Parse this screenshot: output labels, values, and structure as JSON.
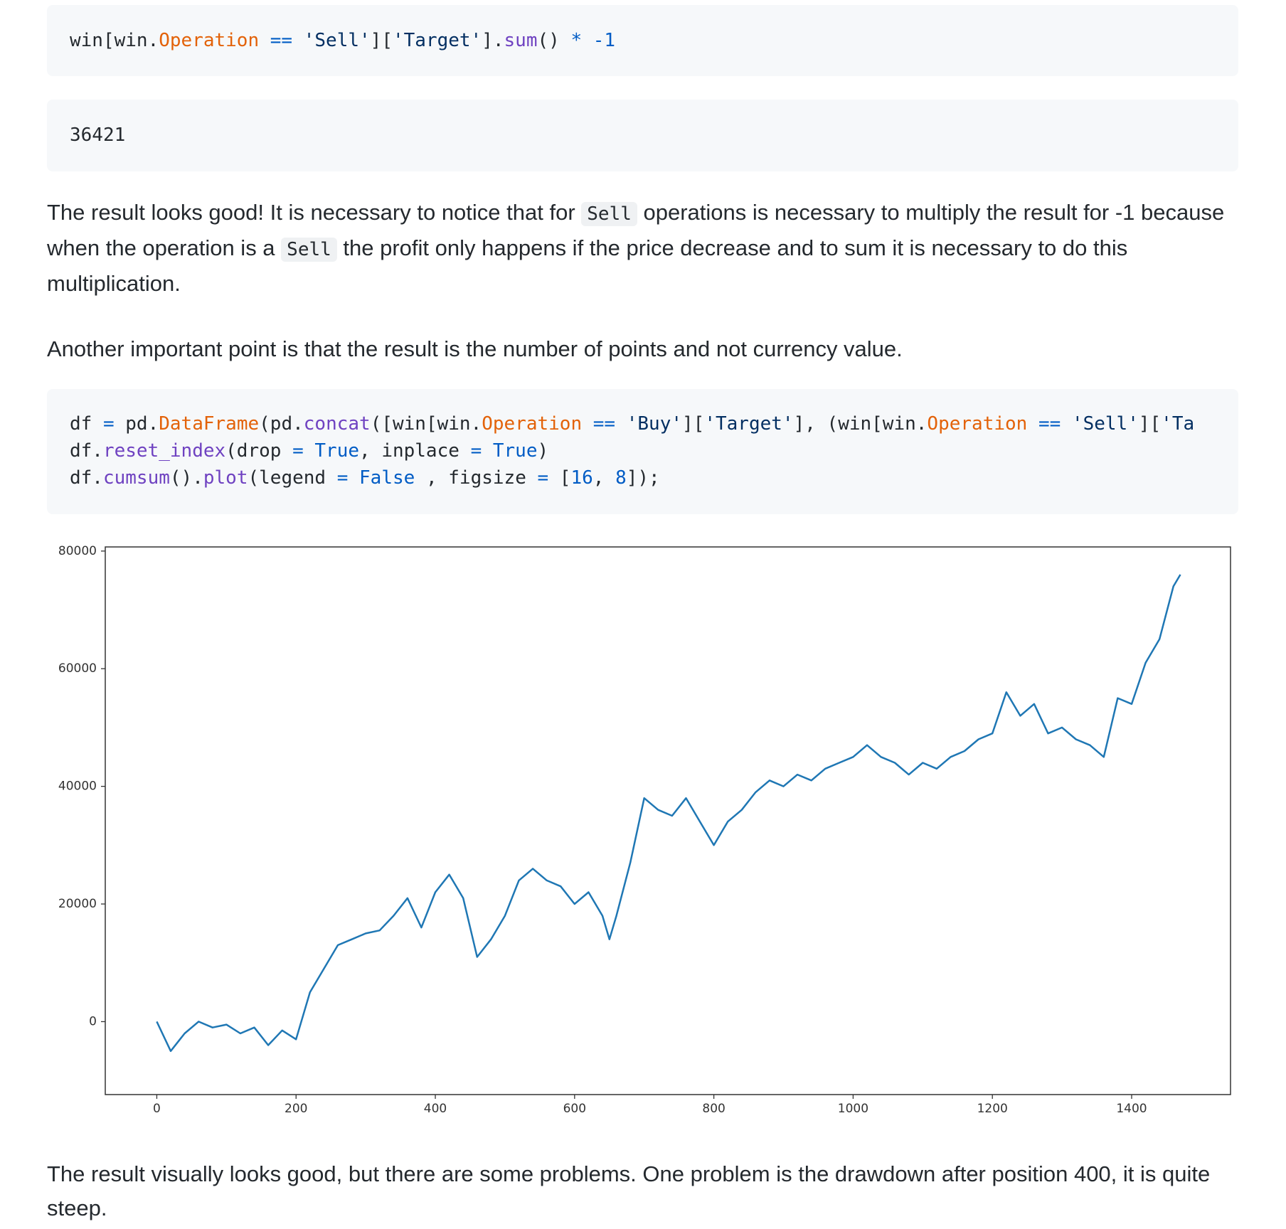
{
  "code_blocks": [
    {
      "lines": [
        [
          "win[win.",
          {
            "text": "Operation",
            "color": "#e36209"
          },
          " ",
          {
            "text": "==",
            "color": "#005cc5"
          },
          " ",
          {
            "text": "'Sell'",
            "color": "#032f62"
          },
          "][",
          {
            "text": "'Target'",
            "color": "#032f62"
          },
          "].",
          {
            "text": "sum",
            "color": "#6f42c1"
          },
          "() ",
          {
            "text": "* -1",
            "color": "#005cc5"
          }
        ]
      ]
    },
    {
      "lines": [
        [
          "36421"
        ]
      ]
    },
    {
      "lines": [
        [
          "df ",
          {
            "text": "=",
            "color": "#005cc5"
          },
          " pd.",
          {
            "text": "DataFrame",
            "color": "#e36209"
          },
          "(pd.",
          {
            "text": "concat",
            "color": "#6f42c1"
          },
          "([win[win.",
          {
            "text": "Operation",
            "color": "#e36209"
          },
          " ",
          {
            "text": "==",
            "color": "#005cc5"
          },
          " ",
          {
            "text": "'Buy'",
            "color": "#032f62"
          },
          "][",
          {
            "text": "'Target'",
            "color": "#032f62"
          },
          "], (win[win.",
          {
            "text": "Operation",
            "color": "#e36209"
          },
          " ",
          {
            "text": "==",
            "color": "#005cc5"
          },
          " ",
          {
            "text": "'Sell'",
            "color": "#032f62"
          },
          "][",
          {
            "text": "'Ta",
            "color": "#032f62"
          }
        ],
        [
          "df.",
          {
            "text": "reset_index",
            "color": "#6f42c1"
          },
          "(drop ",
          {
            "text": "=",
            "color": "#005cc5"
          },
          " ",
          {
            "text": "True",
            "color": "#005cc5"
          },
          ", inplace ",
          {
            "text": "=",
            "color": "#005cc5"
          },
          " ",
          {
            "text": "True",
            "color": "#005cc5"
          },
          ")"
        ],
        [
          "df.",
          {
            "text": "cumsum",
            "color": "#6f42c1"
          },
          "().",
          {
            "text": "plot",
            "color": "#6f42c1"
          },
          "(legend ",
          {
            "text": "=",
            "color": "#005cc5"
          },
          " ",
          {
            "text": "False",
            "color": "#005cc5"
          },
          " , figsize ",
          {
            "text": "=",
            "color": "#005cc5"
          },
          " [",
          {
            "text": "16",
            "color": "#005cc5"
          },
          ", ",
          {
            "text": "8",
            "color": "#005cc5"
          },
          "]);"
        ]
      ]
    }
  ],
  "paragraphs": [
    [
      "The result looks good! It is necessary to notice that for ",
      {
        "code": "Sell"
      },
      " operations is necessary to multiply the result for -1 because when the operation is a ",
      {
        "code": "Sell"
      },
      " the profit only happens if the price decrease and to sum it is necessary to do this multiplication."
    ],
    [
      "Another important point is that the result is the number of points and not currency value."
    ],
    [
      "The result visually looks good, but there are some problems. One problem is the drawdown after position 400, it is quite steep."
    ]
  ],
  "chart_data": {
    "type": "line",
    "color": "#1f77b4",
    "x": [
      0,
      20,
      40,
      60,
      80,
      100,
      120,
      140,
      160,
      180,
      200,
      220,
      240,
      260,
      280,
      300,
      320,
      340,
      360,
      380,
      400,
      420,
      440,
      460,
      480,
      500,
      520,
      540,
      560,
      580,
      600,
      620,
      640,
      650,
      660,
      680,
      700,
      720,
      740,
      760,
      780,
      800,
      820,
      840,
      860,
      880,
      900,
      920,
      940,
      960,
      980,
      1000,
      1020,
      1040,
      1060,
      1080,
      1100,
      1120,
      1140,
      1160,
      1180,
      1200,
      1220,
      1240,
      1260,
      1280,
      1300,
      1320,
      1340,
      1360,
      1380,
      1400,
      1420,
      1440,
      1460,
      1470
    ],
    "values": [
      0,
      -5000,
      -2000,
      0,
      -1000,
      -500,
      -2000,
      -1000,
      -4000,
      -1500,
      -3000,
      5000,
      9000,
      13000,
      14000,
      15000,
      15500,
      18000,
      21000,
      16000,
      22000,
      25000,
      21000,
      11000,
      14000,
      18000,
      24000,
      26000,
      24000,
      23000,
      20000,
      22000,
      18000,
      14000,
      18000,
      27000,
      38000,
      36000,
      35000,
      38000,
      34000,
      30000,
      34000,
      36000,
      39000,
      41000,
      40000,
      42000,
      41000,
      43000,
      44000,
      45000,
      47000,
      45000,
      44000,
      42000,
      44000,
      43000,
      45000,
      46000,
      48000,
      49000,
      56000,
      52000,
      54000,
      49000,
      50000,
      48000,
      47000,
      45000,
      55000,
      54000,
      61000,
      65000,
      74000,
      76000
    ],
    "xlim": [
      -74,
      1542
    ],
    "ylim": [
      -12400,
      80700
    ],
    "xticks": [
      0,
      200,
      400,
      600,
      800,
      1000,
      1200,
      1400
    ],
    "yticks": [
      0,
      20000,
      40000,
      60000,
      80000
    ]
  }
}
